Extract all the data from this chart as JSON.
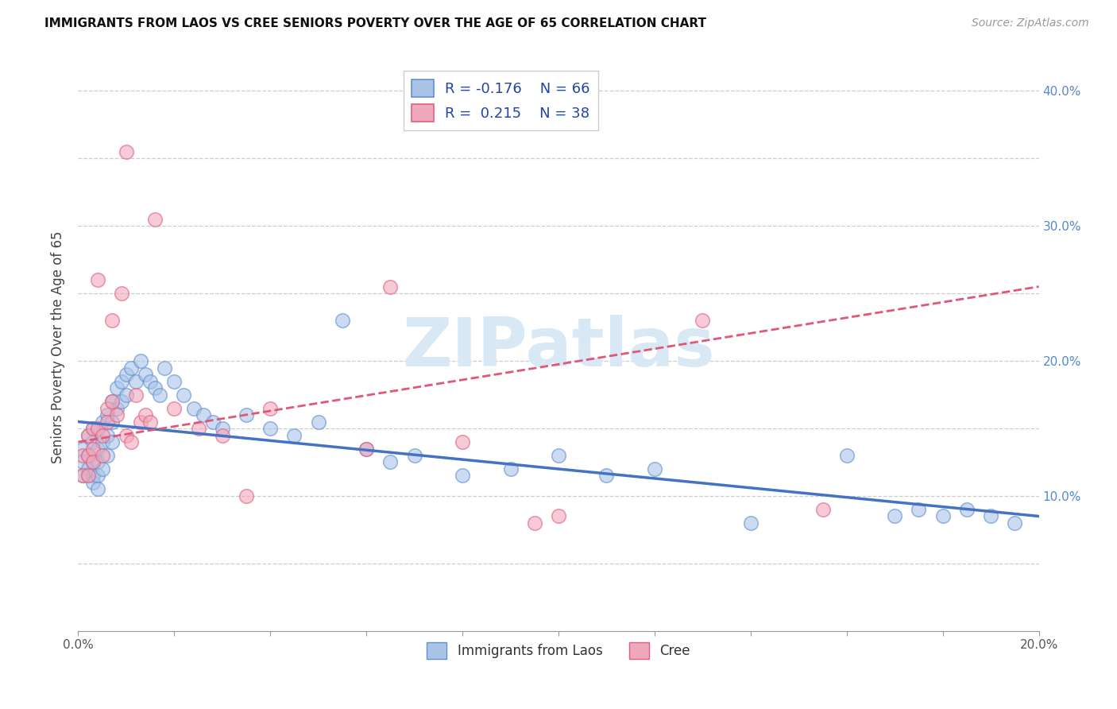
{
  "title": "IMMIGRANTS FROM LAOS VS CREE SENIORS POVERTY OVER THE AGE OF 65 CORRELATION CHART",
  "source": "Source: ZipAtlas.com",
  "ylabel_label": "Seniors Poverty Over the Age of 65",
  "xlim": [
    0.0,
    0.2
  ],
  "ylim": [
    0.0,
    0.42
  ],
  "xtick_vals": [
    0.0,
    0.02,
    0.04,
    0.06,
    0.08,
    0.1,
    0.12,
    0.14,
    0.16,
    0.18,
    0.2
  ],
  "xtick_label_vals": [
    0.0,
    0.2
  ],
  "xtick_labels": [
    "0.0%",
    "20.0%"
  ],
  "ytick_vals": [
    0.05,
    0.1,
    0.15,
    0.2,
    0.25,
    0.3,
    0.35,
    0.4
  ],
  "ytick_right_labels": [
    "",
    "10.0%",
    "",
    "20.0%",
    "",
    "30.0%",
    "",
    "40.0%"
  ],
  "background_color": "#ffffff",
  "grid_color": "#cccccc",
  "legend_R1": "-0.176",
  "legend_N1": "66",
  "legend_R2": "0.215",
  "legend_N2": "38",
  "blue_color": "#aac4e8",
  "pink_color": "#f0a8bc",
  "blue_edge_color": "#6090d0",
  "pink_edge_color": "#e06080",
  "blue_line_color": "#4472c4",
  "pink_line_color": "#e05878",
  "watermark_color": "#d8e8f4",
  "watermark": "ZIPatlas",
  "blue_x": [
    0.001,
    0.001,
    0.001,
    0.002,
    0.002,
    0.002,
    0.002,
    0.003,
    0.003,
    0.003,
    0.003,
    0.003,
    0.004,
    0.004,
    0.004,
    0.004,
    0.005,
    0.005,
    0.005,
    0.006,
    0.006,
    0.006,
    0.007,
    0.007,
    0.007,
    0.008,
    0.008,
    0.009,
    0.009,
    0.01,
    0.01,
    0.011,
    0.012,
    0.013,
    0.014,
    0.015,
    0.016,
    0.017,
    0.018,
    0.02,
    0.022,
    0.024,
    0.026,
    0.028,
    0.03,
    0.035,
    0.04,
    0.045,
    0.05,
    0.055,
    0.06,
    0.065,
    0.07,
    0.08,
    0.09,
    0.1,
    0.11,
    0.12,
    0.14,
    0.16,
    0.17,
    0.175,
    0.18,
    0.185,
    0.19,
    0.195
  ],
  "blue_y": [
    0.135,
    0.125,
    0.115,
    0.145,
    0.13,
    0.12,
    0.115,
    0.15,
    0.14,
    0.125,
    0.115,
    0.11,
    0.135,
    0.125,
    0.115,
    0.105,
    0.155,
    0.14,
    0.12,
    0.16,
    0.145,
    0.13,
    0.17,
    0.155,
    0.14,
    0.18,
    0.165,
    0.185,
    0.17,
    0.19,
    0.175,
    0.195,
    0.185,
    0.2,
    0.19,
    0.185,
    0.18,
    0.175,
    0.195,
    0.185,
    0.175,
    0.165,
    0.16,
    0.155,
    0.15,
    0.16,
    0.15,
    0.145,
    0.155,
    0.23,
    0.135,
    0.125,
    0.13,
    0.115,
    0.12,
    0.13,
    0.115,
    0.12,
    0.08,
    0.13,
    0.085,
    0.09,
    0.085,
    0.09,
    0.085,
    0.08
  ],
  "pink_x": [
    0.001,
    0.001,
    0.002,
    0.002,
    0.002,
    0.003,
    0.003,
    0.003,
    0.004,
    0.004,
    0.005,
    0.005,
    0.006,
    0.006,
    0.007,
    0.007,
    0.008,
    0.009,
    0.01,
    0.01,
    0.011,
    0.012,
    0.013,
    0.014,
    0.015,
    0.016,
    0.02,
    0.025,
    0.03,
    0.035,
    0.04,
    0.06,
    0.065,
    0.08,
    0.095,
    0.1,
    0.13,
    0.155
  ],
  "pink_y": [
    0.13,
    0.115,
    0.145,
    0.13,
    0.115,
    0.15,
    0.135,
    0.125,
    0.26,
    0.15,
    0.145,
    0.13,
    0.165,
    0.155,
    0.23,
    0.17,
    0.16,
    0.25,
    0.145,
    0.355,
    0.14,
    0.175,
    0.155,
    0.16,
    0.155,
    0.305,
    0.165,
    0.15,
    0.145,
    0.1,
    0.165,
    0.135,
    0.255,
    0.14,
    0.08,
    0.085,
    0.23,
    0.09
  ]
}
